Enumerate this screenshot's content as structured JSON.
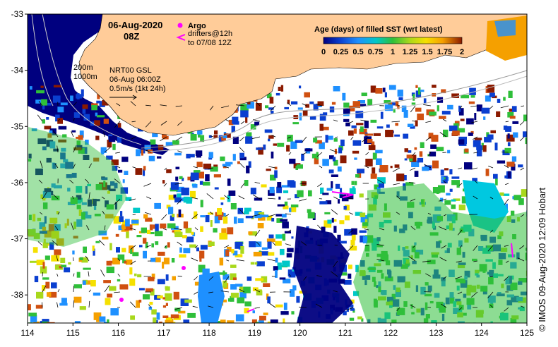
{
  "map": {
    "date_label": "06-Aug-2020",
    "time_label": "08Z",
    "argo_label": "Argo",
    "drifters_label": "drifters@12h",
    "drifters_sub": "to 07/08 12Z",
    "contour_200": "200m",
    "contour_1000": "1000m",
    "product_label": "NRT00 GSL",
    "product_time": "06-Aug 06:00Z",
    "scale_label": "0.5m/s (1kt 24h)",
    "credit": "© IMOS 09-Aug-2020 12:09 Hobart"
  },
  "colorbar": {
    "title": "Age (days) of filled SST (wrt latest)",
    "tick_labels": [
      "0",
      "0.25",
      "0.5",
      "0.75",
      "1",
      "1.25",
      "1.5",
      "1.75",
      "2"
    ],
    "colors": [
      "#00007f",
      "#0a3fd0",
      "#1e90ff",
      "#00c8c8",
      "#2fbf3a",
      "#a8d81c",
      "#f5e000",
      "#f5a000",
      "#d05010",
      "#8b1a00"
    ]
  },
  "axes": {
    "x_ticks": [
      "114",
      "115",
      "116",
      "117",
      "118",
      "119",
      "120",
      "121",
      "122",
      "123",
      "124",
      "125"
    ],
    "y_ticks": [
      "-33",
      "-34",
      "-35",
      "-36",
      "-37",
      "-38"
    ],
    "xlim": [
      114,
      125
    ],
    "ylim": [
      -38.5,
      -33
    ]
  },
  "colors": {
    "land": "#ffcc99",
    "deep_blue": "#00007f",
    "argo_marker": "#ff00ff"
  }
}
